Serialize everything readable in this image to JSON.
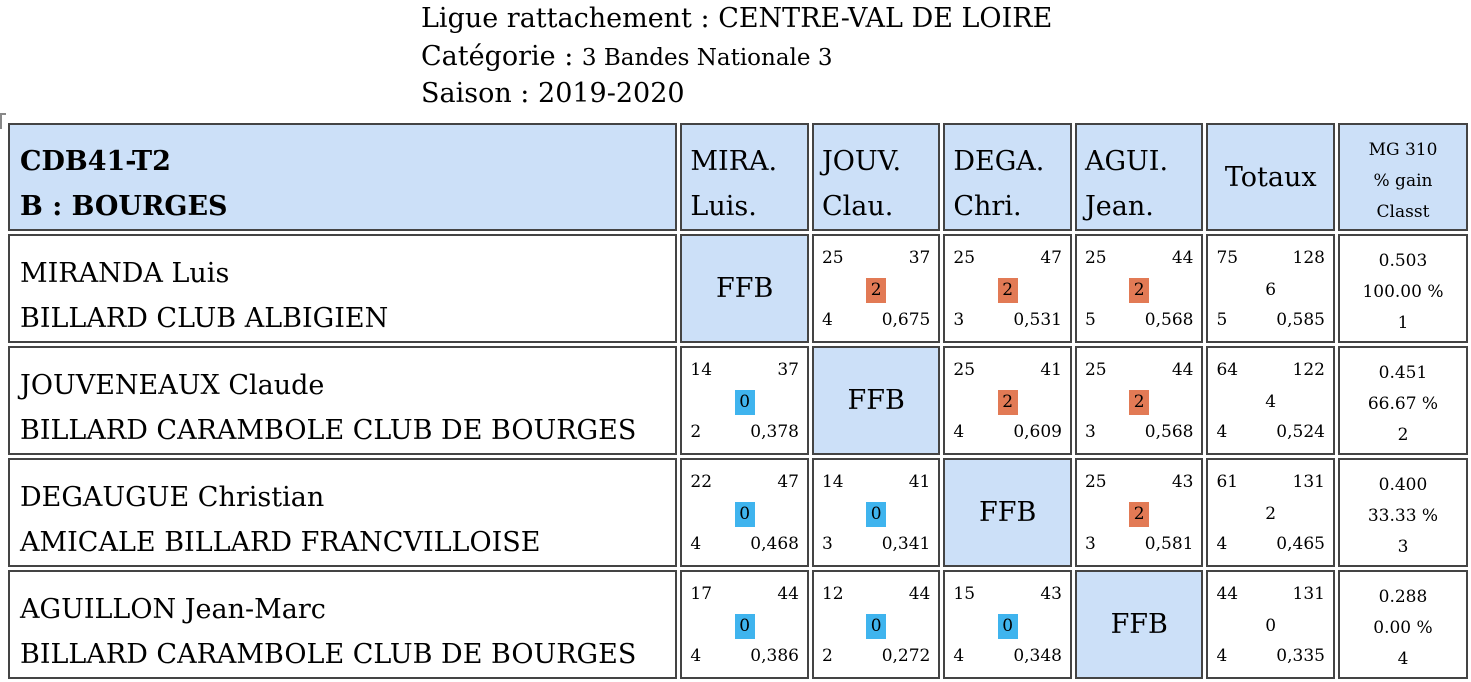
{
  "header": {
    "ligue_label": "Ligue rattachement :",
    "ligue_value": "CENTRE-VAL DE LOIRE",
    "categorie_label": "Catégorie :",
    "categorie_value": "3 Bandes Nationale 3",
    "saison_label": "Saison :",
    "saison_value": "2019-2020"
  },
  "table": {
    "title_line1": "CDB41-T2",
    "title_line2": "B : BOURGES",
    "columns": [
      {
        "line1": "MIRA.",
        "line2": "Luis."
      },
      {
        "line1": "JOUV.",
        "line2": "Clau."
      },
      {
        "line1": "DEGA.",
        "line2": "Chri."
      },
      {
        "line1": "AGUI.",
        "line2": "Jean."
      }
    ],
    "totals_header": "Totaux",
    "mg_header": {
      "line1": "MG 310",
      "line2": "% gain",
      "line3": "Classt"
    },
    "ffb_label": "FFB",
    "colors": {
      "win": "#e27a55",
      "loss": "#3fb4ee",
      "header_bg": "#cce0f8"
    },
    "rows": [
      {
        "name": "MIRANDA Luis",
        "club": "BILLARD CLUB ALBIGIEN",
        "cells": [
          null,
          {
            "points": "25",
            "reprises": "37",
            "match_points": "2",
            "serie": "4",
            "moyenne": "0,675",
            "result": "win"
          },
          {
            "points": "25",
            "reprises": "47",
            "match_points": "2",
            "serie": "3",
            "moyenne": "0,531",
            "result": "win"
          },
          {
            "points": "25",
            "reprises": "44",
            "match_points": "2",
            "serie": "5",
            "moyenne": "0,568",
            "result": "win"
          }
        ],
        "totals": {
          "points": "75",
          "reprises": "128",
          "match_points": "6",
          "serie": "5",
          "moyenne": "0,585"
        },
        "mg": {
          "moyenne": "0.503",
          "gain": "100.00 %",
          "classt": "1"
        }
      },
      {
        "name": "JOUVENEAUX Claude",
        "club": "BILLARD CARAMBOLE CLUB DE BOURGES",
        "cells": [
          {
            "points": "14",
            "reprises": "37",
            "match_points": "0",
            "serie": "2",
            "moyenne": "0,378",
            "result": "loss"
          },
          null,
          {
            "points": "25",
            "reprises": "41",
            "match_points": "2",
            "serie": "4",
            "moyenne": "0,609",
            "result": "win"
          },
          {
            "points": "25",
            "reprises": "44",
            "match_points": "2",
            "serie": "3",
            "moyenne": "0,568",
            "result": "win"
          }
        ],
        "totals": {
          "points": "64",
          "reprises": "122",
          "match_points": "4",
          "serie": "4",
          "moyenne": "0,524"
        },
        "mg": {
          "moyenne": "0.451",
          "gain": "66.67 %",
          "classt": "2"
        }
      },
      {
        "name": "DEGAUGUE Christian",
        "club": "AMICALE BILLARD FRANCVILLOISE",
        "cells": [
          {
            "points": "22",
            "reprises": "47",
            "match_points": "0",
            "serie": "4",
            "moyenne": "0,468",
            "result": "loss"
          },
          {
            "points": "14",
            "reprises": "41",
            "match_points": "0",
            "serie": "3",
            "moyenne": "0,341",
            "result": "loss"
          },
          null,
          {
            "points": "25",
            "reprises": "43",
            "match_points": "2",
            "serie": "3",
            "moyenne": "0,581",
            "result": "win"
          }
        ],
        "totals": {
          "points": "61",
          "reprises": "131",
          "match_points": "2",
          "serie": "4",
          "moyenne": "0,465"
        },
        "mg": {
          "moyenne": "0.400",
          "gain": "33.33 %",
          "classt": "3"
        }
      },
      {
        "name": "AGUILLON Jean-Marc",
        "club": "BILLARD CARAMBOLE CLUB DE BOURGES",
        "cells": [
          {
            "points": "17",
            "reprises": "44",
            "match_points": "0",
            "serie": "4",
            "moyenne": "0,386",
            "result": "loss"
          },
          {
            "points": "12",
            "reprises": "44",
            "match_points": "0",
            "serie": "2",
            "moyenne": "0,272",
            "result": "loss"
          },
          {
            "points": "15",
            "reprises": "43",
            "match_points": "0",
            "serie": "4",
            "moyenne": "0,348",
            "result": "loss"
          },
          null
        ],
        "totals": {
          "points": "44",
          "reprises": "131",
          "match_points": "0",
          "serie": "4",
          "moyenne": "0,335"
        },
        "mg": {
          "moyenne": "0.288",
          "gain": "0.00 %",
          "classt": "4"
        }
      }
    ]
  }
}
